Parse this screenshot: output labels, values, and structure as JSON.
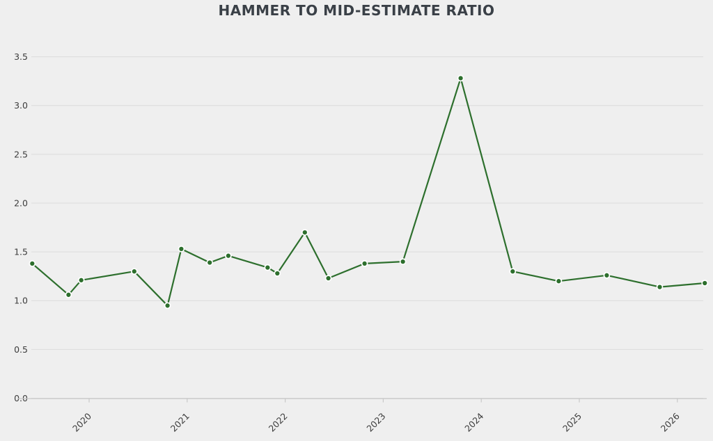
{
  "title": "HAMMER TO MID-ESTIMATE RATIO",
  "colors": {
    "background": "#efefef",
    "grid": "#dcdcdc",
    "axis": "#c8c8c8",
    "line": "#2d6f2d",
    "marker_fill": "#2d6f2d",
    "marker_edge": "#ffffff",
    "title_text": "#3a4047",
    "tick_text": "#3c3c3c"
  },
  "chart_data": {
    "type": "line",
    "title": "HAMMER TO MID-ESTIMATE RATIO",
    "xlabel": "",
    "ylabel": "",
    "grid": "horizontal-only",
    "legend": "none",
    "ylim": [
      0.0,
      3.5
    ],
    "xlim": [
      2019.4,
      2026.35
    ],
    "x_ticks": [
      2020,
      2021,
      2022,
      2023,
      2024,
      2025,
      2026
    ],
    "x_tick_labels": [
      "2020",
      "2021",
      "2022",
      "2023",
      "2024",
      "2025",
      "2026"
    ],
    "y_ticks": [
      0.0,
      0.5,
      1.0,
      1.5,
      2.0,
      2.5,
      3.0,
      3.5
    ],
    "y_tick_labels": [
      "0.0",
      "0.5",
      "1.0",
      "1.5",
      "2.0",
      "2.5",
      "3.0",
      "3.5"
    ],
    "series": [
      {
        "name": "hammer-to-mid-estimate-ratio",
        "points": [
          {
            "x": 2019.42,
            "y": 1.38
          },
          {
            "x": 2019.79,
            "y": 1.06
          },
          {
            "x": 2019.92,
            "y": 1.21
          },
          {
            "x": 2020.46,
            "y": 1.3
          },
          {
            "x": 2020.8,
            "y": 0.95
          },
          {
            "x": 2020.94,
            "y": 1.53
          },
          {
            "x": 2021.23,
            "y": 1.39
          },
          {
            "x": 2021.42,
            "y": 1.46
          },
          {
            "x": 2021.82,
            "y": 1.34
          },
          {
            "x": 2021.92,
            "y": 1.28
          },
          {
            "x": 2022.2,
            "y": 1.7
          },
          {
            "x": 2022.44,
            "y": 1.23
          },
          {
            "x": 2022.81,
            "y": 1.38
          },
          {
            "x": 2023.2,
            "y": 1.4
          },
          {
            "x": 2023.79,
            "y": 3.28
          },
          {
            "x": 2024.32,
            "y": 1.3
          },
          {
            "x": 2024.79,
            "y": 1.2
          },
          {
            "x": 2025.28,
            "y": 1.26
          },
          {
            "x": 2025.82,
            "y": 1.14
          },
          {
            "x": 2026.28,
            "y": 1.18
          }
        ]
      }
    ]
  }
}
